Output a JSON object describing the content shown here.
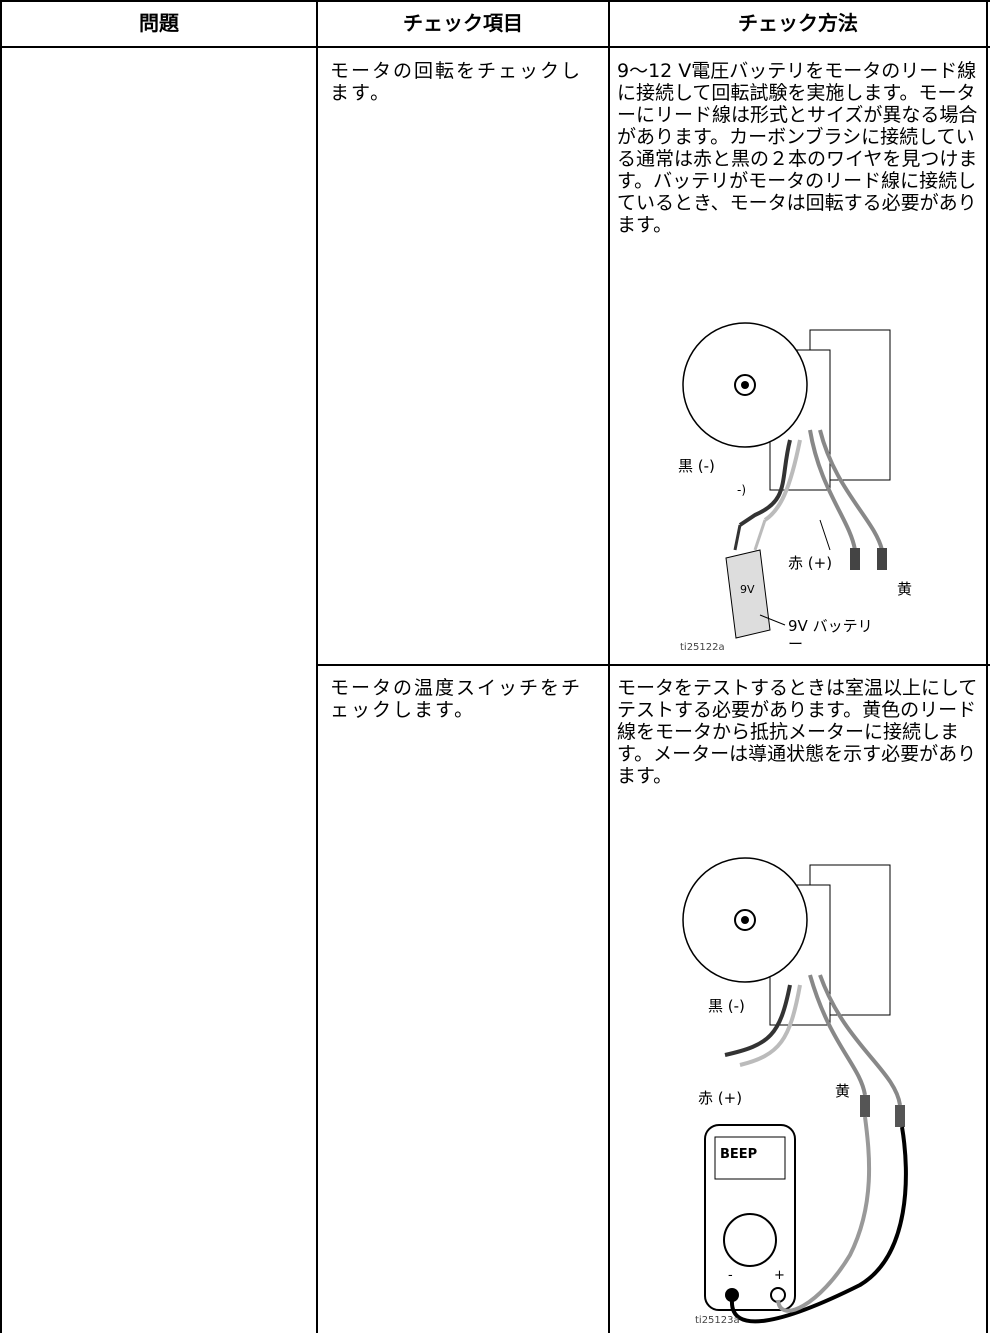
{
  "table": {
    "headers": [
      "問題",
      "チェック項目",
      "チェック方法"
    ],
    "rows": [
      {
        "check_item": "モータの回転をチェックします。",
        "method": "9～12 V電圧バッテリをモータのリード線に接続して回転試験を実施します。モーターにリード線は形式とサイズが異なる場合があります。カーボンブラシに接続している通常は赤と黒の２本のワイヤを見つけます。バッテリがモータのリード線に接続しているとき、モータは回転する必要があります。",
        "figure": {
          "black": "黒 (-)",
          "black_short": "-)",
          "red": "赤 (+)",
          "yellow": "黄",
          "battery_face": "9V",
          "battery": "9V バッテリー",
          "id": "ti25122a"
        }
      },
      {
        "check_item": "モータの温度スイッチをチェックします。",
        "method": "モータをテストするときは室温以上にしてテストする必要があります。黄色のリード線をモータから抵抗メーターに接続します。メーターは導通状態を示す必要があります。",
        "figure": {
          "black": "黒 (-)",
          "red": "赤 (+)",
          "yellow": "黄",
          "display": "BEEP",
          "minus": "-",
          "plus": "+",
          "id": "ti25123a"
        }
      }
    ]
  }
}
